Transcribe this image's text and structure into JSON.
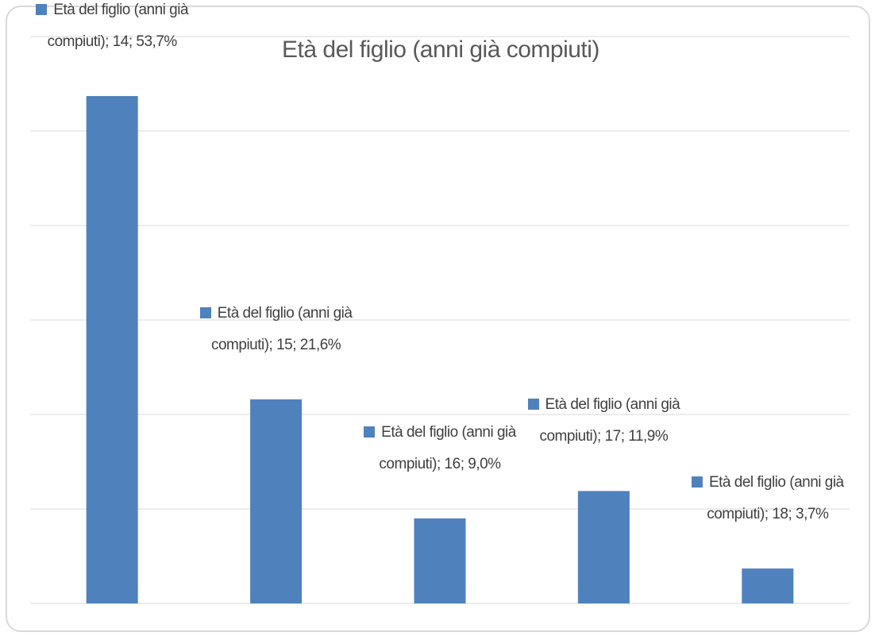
{
  "chart_data": {
    "type": "bar",
    "title": "Età del figlio (anni già compiuti)",
    "categories": [
      "14",
      "15",
      "16",
      "17",
      "18"
    ],
    "series": [
      {
        "name": "Età del figlio (anni già compiuti)",
        "color": "#4f81bd",
        "values": [
          53.7,
          21.6,
          9.0,
          11.9,
          3.7
        ],
        "value_labels": [
          "Età del figlio (anni già compiuti); 14; 53,7%",
          "Età del figlio (anni già compiuti); 15; 21,6%",
          "Età del figlio (anni già compiuti); 16; 9,0%",
          "Età del figlio (anni già compiuti); 17; 11,9%",
          "Età del figlio (anni già compiuti); 18; 3,7%"
        ]
      }
    ],
    "ylim": [
      0,
      60
    ],
    "yticks": [
      0,
      10,
      20,
      30,
      40,
      50,
      60
    ],
    "grid": true
  }
}
